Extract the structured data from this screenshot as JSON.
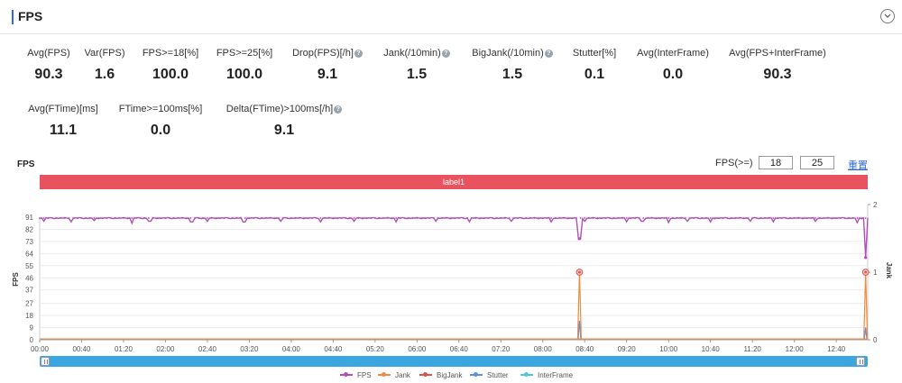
{
  "section": {
    "title": "FPS"
  },
  "metrics": [
    {
      "label": "Avg(FPS)",
      "value": "90.3",
      "help": false
    },
    {
      "label": "Var(FPS)",
      "value": "1.6",
      "help": false
    },
    {
      "label": "FPS>=18[%]",
      "value": "100.0",
      "help": false
    },
    {
      "label": "FPS>=25[%]",
      "value": "100.0",
      "help": false
    },
    {
      "label": "Drop(FPS)[/h]",
      "value": "9.1",
      "help": true
    },
    {
      "label": "Jank(/10min)",
      "value": "1.5",
      "help": true
    },
    {
      "label": "BigJank(/10min)",
      "value": "1.5",
      "help": true
    },
    {
      "label": "Stutter[%]",
      "value": "0.1",
      "help": false
    },
    {
      "label": "Avg(InterFrame)",
      "value": "0.0",
      "help": false
    },
    {
      "label": "Avg(FPS+InterFrame)",
      "value": "90.3",
      "help": false
    },
    {
      "label": "Avg(FTime)[ms]",
      "value": "11.1",
      "help": false
    },
    {
      "label": "FTime>=100ms[%]",
      "value": "0.0",
      "help": false
    },
    {
      "label": "Delta(FTime)>100ms[/h]",
      "value": "9.1",
      "help": true
    }
  ],
  "chart_header": {
    "title": "FPS",
    "threshold_label": "FPS(>=)",
    "threshold_low": "18",
    "threshold_high": "25",
    "reset_label": "重置"
  },
  "chart_data": {
    "type": "line",
    "label_band": "label1",
    "ylabel": "FPS",
    "ylabel_right": "Jank",
    "y_ticks": [
      0,
      9,
      18,
      27,
      37,
      46,
      55,
      64,
      73,
      82,
      91
    ],
    "y_right_ticks": [
      0,
      1,
      2
    ],
    "x_ticks": [
      "00:00",
      "00:40",
      "01:20",
      "02:00",
      "02:40",
      "03:20",
      "04:00",
      "04:40",
      "05:20",
      "06:00",
      "06:40",
      "07:20",
      "08:00",
      "08:40",
      "09:20",
      "10:00",
      "10:40",
      "11:20",
      "12:00",
      "12:40"
    ],
    "x_range_minutes": [
      0,
      790
    ],
    "fps_baseline": 90.3,
    "fps_dips": [
      {
        "t": 4,
        "v": 88
      },
      {
        "t": 30,
        "v": 87.5
      },
      {
        "t": 52,
        "v": 88.5
      },
      {
        "t": 88,
        "v": 86.5
      },
      {
        "t": 105,
        "v": 88
      },
      {
        "t": 145,
        "v": 87.5
      },
      {
        "t": 160,
        "v": 88
      },
      {
        "t": 195,
        "v": 87.5
      },
      {
        "t": 230,
        "v": 88
      },
      {
        "t": 268,
        "v": 87.5
      },
      {
        "t": 300,
        "v": 88
      },
      {
        "t": 340,
        "v": 87.5
      },
      {
        "t": 378,
        "v": 88
      },
      {
        "t": 410,
        "v": 87.5
      },
      {
        "t": 450,
        "v": 88
      },
      {
        "t": 488,
        "v": 87.5
      },
      {
        "t": 520,
        "v": 88
      },
      {
        "t": 560,
        "v": 87.5
      },
      {
        "t": 575,
        "v": 88
      },
      {
        "t": 600,
        "v": 87
      },
      {
        "t": 618,
        "v": 88
      },
      {
        "t": 640,
        "v": 87.5
      },
      {
        "t": 678,
        "v": 88
      },
      {
        "t": 700,
        "v": 87.5
      },
      {
        "t": 740,
        "v": 88
      },
      {
        "t": 780,
        "v": 87
      }
    ],
    "fps_drops": [
      {
        "t": 515,
        "v": 75
      },
      {
        "t": 788,
        "v": 61
      }
    ],
    "jank_events": [
      {
        "t": 515,
        "v": 1
      },
      {
        "t": 788,
        "v": 1
      }
    ],
    "stutter_events": [
      {
        "t": 515,
        "v": 14
      },
      {
        "t": 788,
        "v": 9
      }
    ],
    "series": [
      {
        "name": "FPS",
        "color": "#b04fb8"
      },
      {
        "name": "Jank",
        "color": "#f08a3e"
      },
      {
        "name": "BigJank",
        "color": "#d9534f"
      },
      {
        "name": "Stutter",
        "color": "#5b8fe0"
      },
      {
        "name": "InterFrame",
        "color": "#4fc6d9"
      }
    ]
  }
}
